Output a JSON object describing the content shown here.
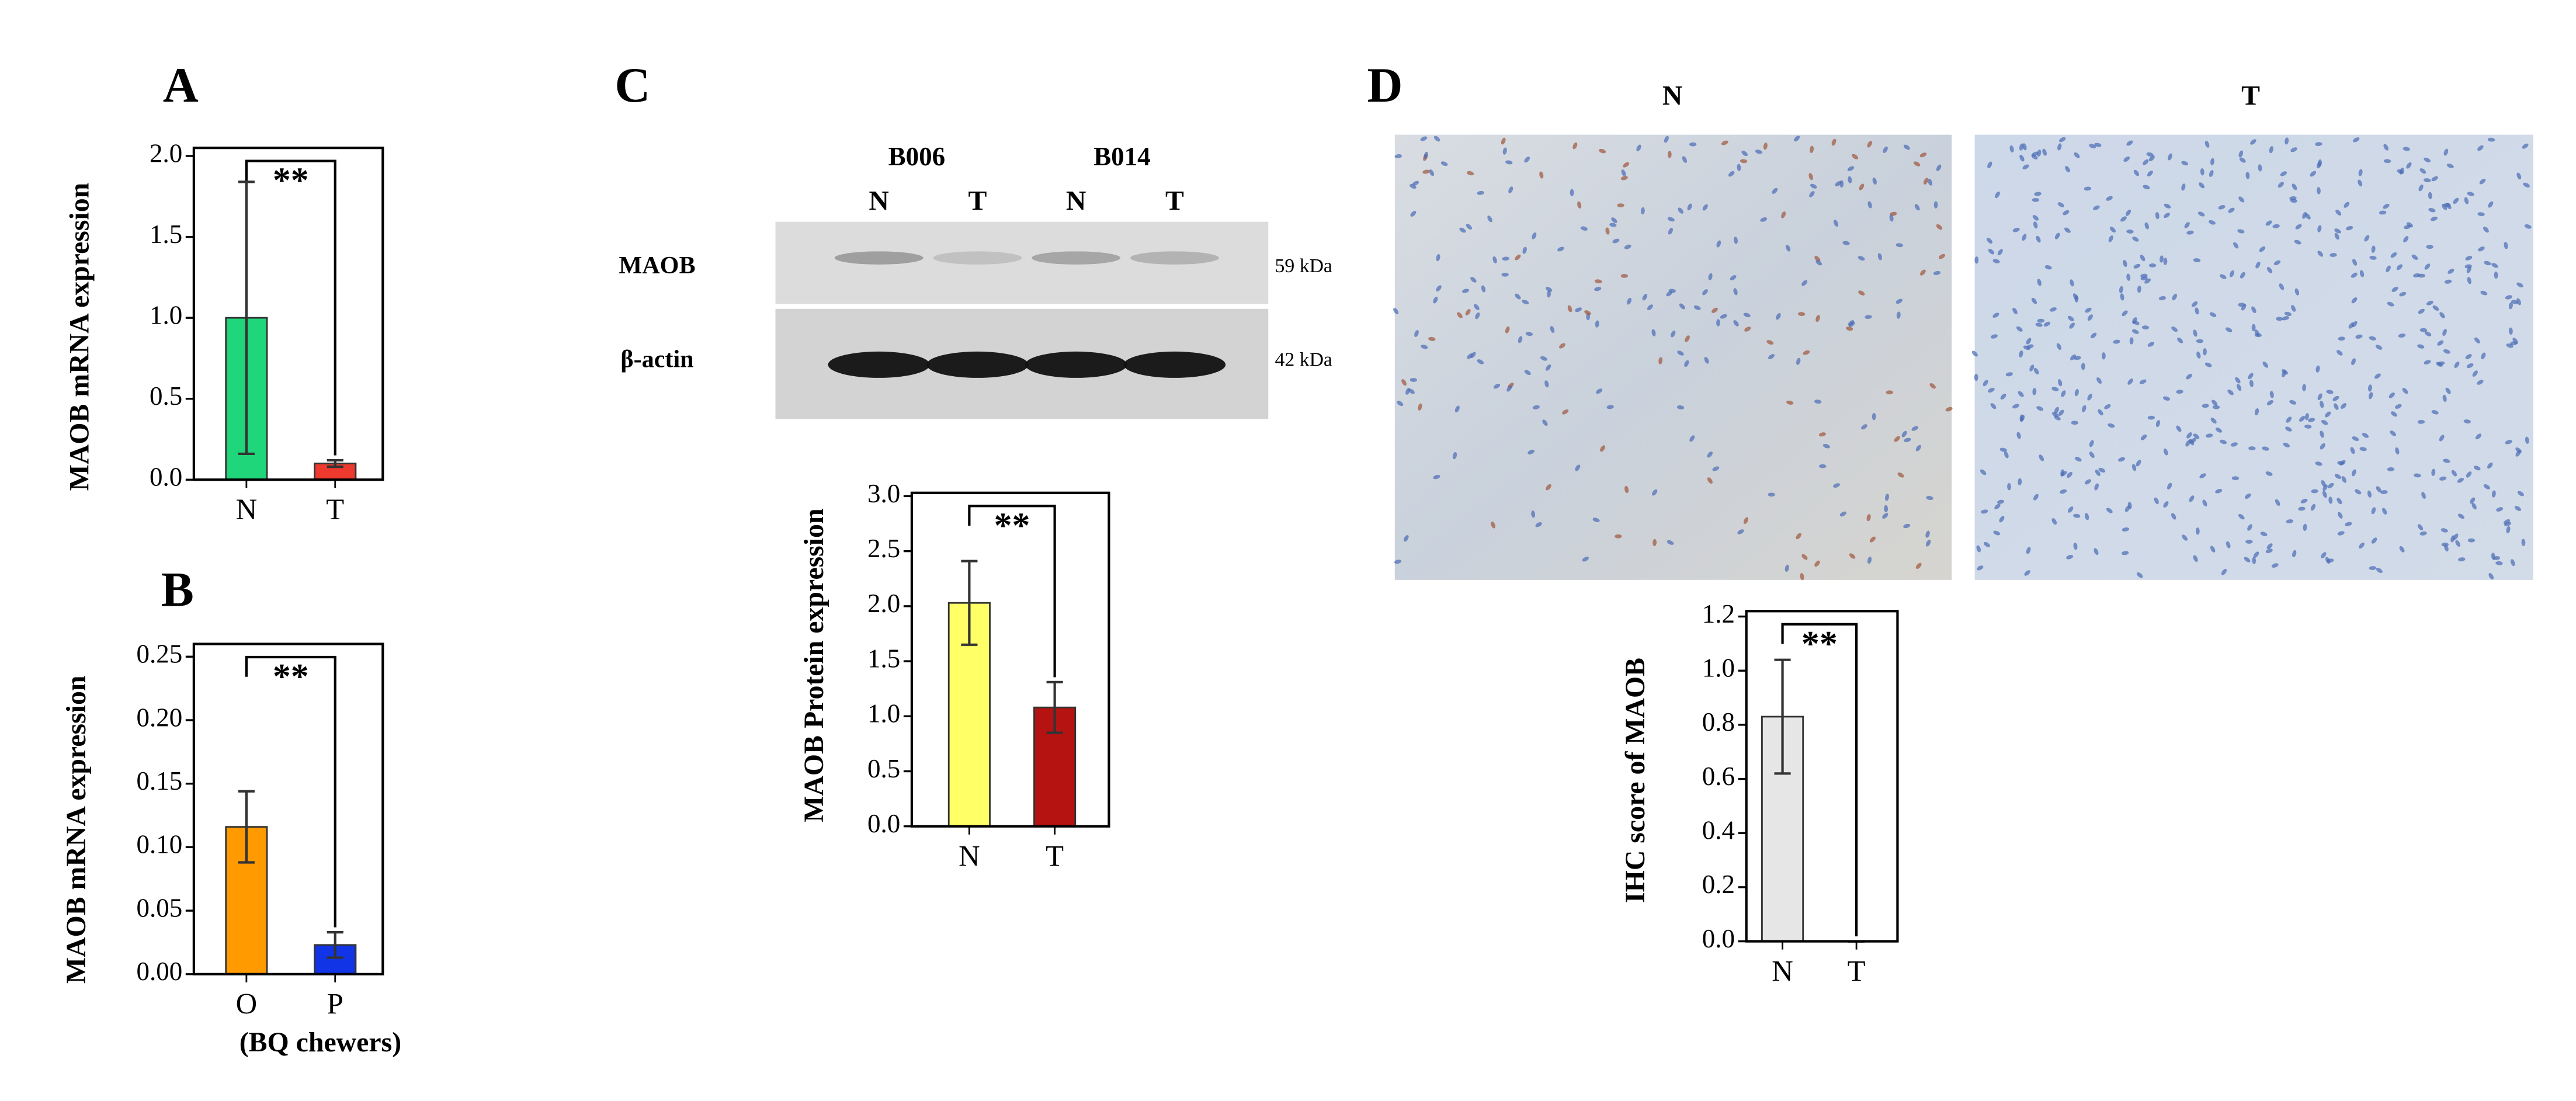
{
  "chart_data": [
    {
      "type": "bar",
      "panel": "A",
      "ylabel": "MAOB mRNA expression",
      "annotation": "**",
      "categories": [
        "N",
        "T"
      ],
      "values": [
        1.0,
        0.1
      ],
      "errors": [
        0.84,
        0.02
      ],
      "colors": [
        "#1fd67a",
        "#ee3a2e"
      ],
      "ylim": [
        0,
        2.05
      ],
      "yticks": [
        {
          "value": 0,
          "label": "0.0"
        },
        0.5,
        {
          "value": 1,
          "label": "1.0"
        },
        1.5,
        {
          "value": 2,
          "label": "2.0"
        }
      ]
    },
    {
      "type": "bar",
      "panel": "B",
      "ylabel": "MAOB mRNA expression",
      "annotation": "**",
      "xlabel": "(BQ chewers)",
      "categories": [
        "O",
        "P"
      ],
      "values": [
        0.116,
        0.023
      ],
      "errors": [
        0.028,
        0.01
      ],
      "colors": [
        "#ff9a00",
        "#1034e6"
      ],
      "ylim": [
        0,
        0.26
      ],
      "yticks": [
        {
          "value": 0,
          "label": "0.00"
        },
        0.05,
        {
          "value": 0.1,
          "label": "0.10"
        },
        0.15,
        {
          "value": 0.2,
          "label": "0.20"
        },
        0.25
      ]
    },
    {
      "type": "bar",
      "panel": "C",
      "ylabel": "MAOB Protein expression",
      "annotation": "**",
      "categories": [
        "N",
        "T"
      ],
      "values": [
        2.03,
        1.08
      ],
      "errors": [
        0.38,
        0.23
      ],
      "colors": [
        "#ffff66",
        "#b51212"
      ],
      "ylim": [
        0,
        3.03
      ],
      "yticks": [
        {
          "value": 0,
          "label": "0.0"
        },
        0.5,
        {
          "value": 1,
          "label": "1.0"
        },
        1.5,
        {
          "value": 2,
          "label": "2.0"
        },
        2.5,
        {
          "value": 3,
          "label": "3.0"
        }
      ]
    },
    {
      "type": "bar",
      "panel": "D",
      "ylabel": "IHC score of MAOB",
      "annotation": "**",
      "categories": [
        "N",
        "T"
      ],
      "values": [
        0.83,
        0
      ],
      "errors": [
        0.21,
        0
      ],
      "colors": [
        "#e6e6e6",
        "#e6e6e6"
      ],
      "ylim": [
        0,
        1.22
      ],
      "yticks": [
        {
          "value": 0,
          "label": "0.0"
        },
        0.2,
        0.4,
        0.6,
        0.8,
        {
          "value": 1,
          "label": "1.0"
        },
        1.2
      ]
    }
  ],
  "blot": {
    "samples": [
      "B006",
      "B014"
    ],
    "lanes": [
      "N",
      "T",
      "N",
      "T"
    ],
    "rows": [
      {
        "label": "MAOB",
        "size": "59 kDa"
      },
      {
        "label": "β-actin",
        "size": "42 kDa"
      }
    ]
  },
  "ihc": {
    "panels": [
      "N",
      "T"
    ]
  }
}
